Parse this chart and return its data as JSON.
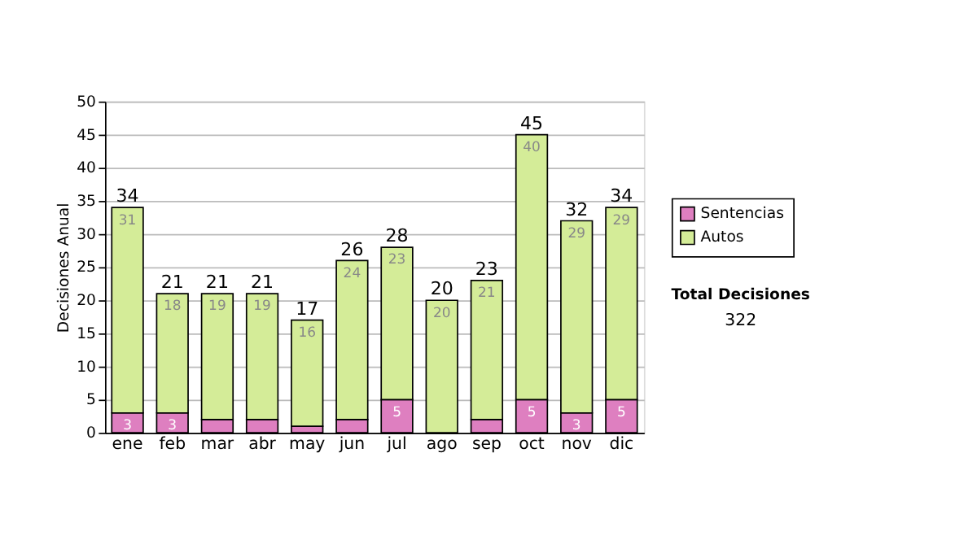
{
  "chart_data": {
    "type": "bar",
    "stacked": true,
    "ylabel": "Decisiones Anual",
    "categories": [
      "ene",
      "feb",
      "mar",
      "abr",
      "may",
      "jun",
      "jul",
      "ago",
      "sep",
      "oct",
      "nov",
      "dic"
    ],
    "series": [
      {
        "name": "Sentencias",
        "color": "#de7fc0",
        "values": [
          3,
          3,
          2,
          2,
          1,
          2,
          5,
          0,
          2,
          5,
          3,
          5
        ],
        "value_labels": [
          "3",
          "3",
          null,
          null,
          null,
          null,
          "5",
          null,
          null,
          "5",
          "3",
          "5"
        ]
      },
      {
        "name": "Autos",
        "color": "#d4ec98",
        "values": [
          31,
          18,
          19,
          19,
          16,
          24,
          23,
          20,
          21,
          40,
          29,
          29
        ],
        "value_labels": [
          "31",
          "18",
          "19",
          "19",
          "16",
          "24",
          "23",
          "20",
          "21",
          "40",
          "29",
          "29"
        ]
      }
    ],
    "totals": [
      "34",
      "21",
      "21",
      "21",
      "17",
      "26",
      "28",
      "20",
      "23",
      "45",
      "32",
      "34"
    ],
    "ylim": [
      0,
      50
    ],
    "yticks": [
      0,
      5,
      10,
      15,
      20,
      25,
      30,
      35,
      40,
      45,
      50
    ],
    "grid": "y",
    "legend": "right",
    "annotations": [
      "Total Decisiones",
      "322"
    ]
  }
}
